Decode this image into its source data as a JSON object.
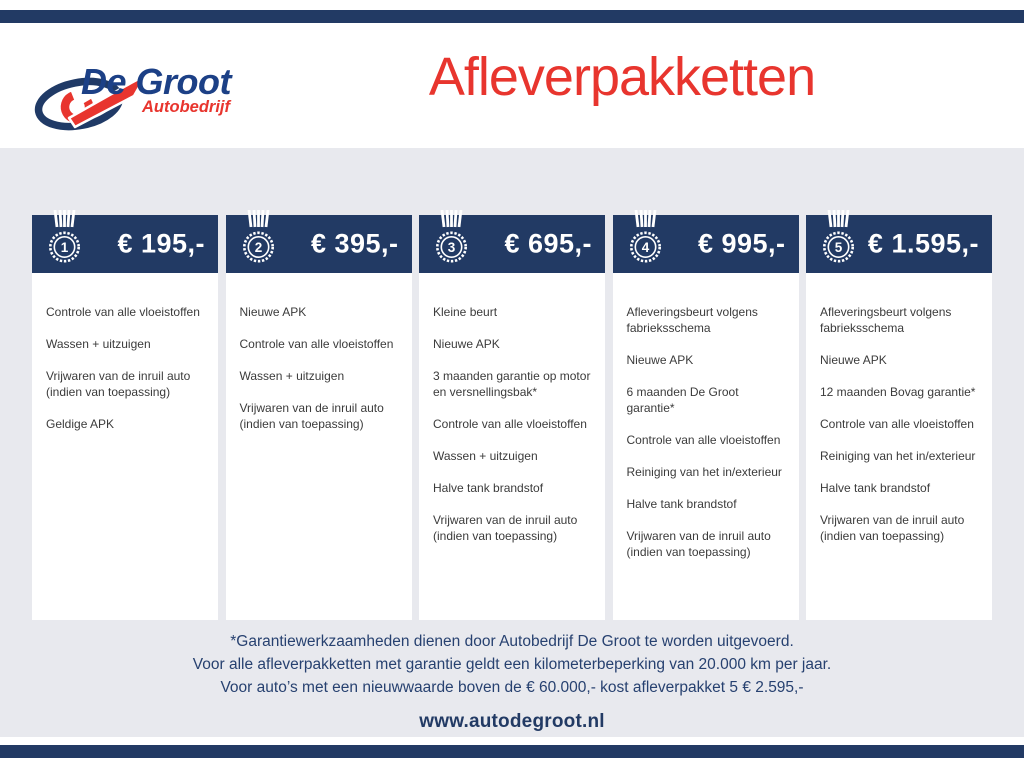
{
  "brand": {
    "name": "De Groot",
    "subtitle": "Autobedrijf"
  },
  "header": {
    "title": "Afleverpakketten"
  },
  "packages": [
    {
      "number": "1",
      "price": "€ 195,-",
      "features": [
        "Controle van alle vloeistoffen",
        "Wassen + uitzuigen",
        "Vrijwaren van de inruil auto (indien van toepassing)",
        "Geldige APK"
      ]
    },
    {
      "number": "2",
      "price": "€ 395,-",
      "features": [
        "Nieuwe APK",
        "Controle van alle vloeistoffen",
        "Wassen + uitzuigen",
        "Vrijwaren van de inruil auto (indien van toepassing)"
      ]
    },
    {
      "number": "3",
      "price": "€ 695,-",
      "features": [
        "Kleine beurt",
        "Nieuwe APK",
        "3 maanden garantie op motor en versnellingsbak*",
        "Controle van alle vloeistoffen",
        "Wassen + uitzuigen",
        "Halve tank brandstof",
        "Vrijwaren van de inruil auto (indien van toepassing)"
      ]
    },
    {
      "number": "4",
      "price": "€ 995,-",
      "features": [
        "Afleveringsbeurt volgens fabrieksschema",
        "Nieuwe APK",
        "6 maanden De Groot garantie*",
        "Controle van alle vloeistoffen",
        "Reiniging van het in/exterieur",
        "Halve tank brandstof",
        "Vrijwaren van de inruil auto (indien van toepassing)"
      ]
    },
    {
      "number": "5",
      "price": "€ 1.595,-",
      "features": [
        "Afleveringsbeurt volgens fabrieksschema",
        "Nieuwe APK",
        "12 maanden Bovag garantie*",
        "Controle van alle vloeistoffen",
        "Reiniging van het in/exterieur",
        "Halve tank brandstof",
        "Vrijwaren van de inruil auto (indien van toepassing)"
      ]
    }
  ],
  "footer": {
    "notes": [
      "*Garantiewerkzaamheden dienen door Autobedrijf De Groot te worden uitgevoerd.",
      "Voor alle afleverpakketten met garantie geldt een kilometerbeperking van 20.000 km per jaar.",
      "Voor auto’s met een nieuwwaarde boven de € 60.000,- kost afleverpakket 5 € 2.595,-"
    ],
    "website": "www.autodegroot.nl"
  },
  "colors": {
    "navy": "#223a64",
    "logo_blue": "#1c4086",
    "red": "#e8352e",
    "band_gray": "#e8e9ee",
    "body_text": "#3b3b3b",
    "note_navy": "#274170"
  }
}
